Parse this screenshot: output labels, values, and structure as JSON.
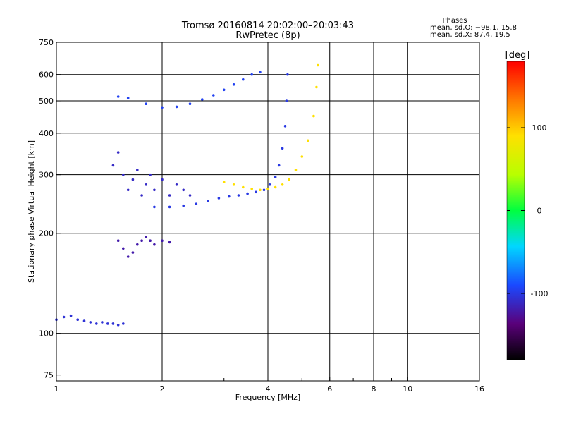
{
  "chart_data": {
    "type": "scatter",
    "title": "Tromsø 20160814 20:02:00–20:03:43",
    "subtitle": "RwPretec (8p)",
    "xlabel": "Frequency [MHz]",
    "ylabel": "Stationary phase Virtual Height [km]",
    "x_scale": "log",
    "y_scale": "log",
    "xlim": [
      1,
      16
    ],
    "ylim": [
      72,
      750
    ],
    "grid": true,
    "x_ticks": [
      1,
      2,
      4,
      6,
      8,
      10,
      16
    ],
    "x_minor_ticks": [
      3,
      5,
      7,
      9
    ],
    "x_gridlines": [
      2,
      4,
      6,
      8,
      10
    ],
    "y_ticks": [
      75,
      100,
      200,
      300,
      400,
      500,
      600,
      750
    ],
    "y_gridlines": [
      100,
      200,
      300,
      400,
      500,
      600
    ],
    "phase_stats": {
      "heading": "Phases",
      "o_line": "mean, sd,O: −98.1, 15.8",
      "x_line": "mean, sd,X:  87.4, 19.5"
    },
    "colorbar": {
      "label": "[deg]",
      "range": [
        -180,
        180
      ],
      "ticks": [
        100,
        0,
        -100
      ],
      "tick_labels": [
        "100",
        "0",
        "-100"
      ]
    },
    "colors": {
      "o_trace": "#1a49ff",
      "x_trace": "#e8e000"
    },
    "series": [
      {
        "trace": "O",
        "mode": "F2 main trace",
        "phase": -100,
        "points": [
          [
            1.9,
            240
          ],
          [
            2.1,
            240
          ],
          [
            2.3,
            242
          ],
          [
            2.5,
            245
          ],
          [
            2.7,
            250
          ],
          [
            2.9,
            255
          ],
          [
            3.1,
            258
          ],
          [
            3.3,
            260
          ],
          [
            3.5,
            263
          ],
          [
            3.7,
            266
          ],
          [
            3.9,
            270
          ],
          [
            4.05,
            280
          ],
          [
            4.2,
            295
          ],
          [
            4.3,
            320
          ],
          [
            4.4,
            360
          ],
          [
            4.48,
            420
          ],
          [
            4.52,
            500
          ],
          [
            4.55,
            600
          ]
        ]
      },
      {
        "trace": "O",
        "mode": "F2 spread cluster",
        "phase": -110,
        "points": [
          [
            1.45,
            320
          ],
          [
            1.5,
            350
          ],
          [
            1.55,
            300
          ],
          [
            1.6,
            270
          ],
          [
            1.65,
            290
          ],
          [
            1.7,
            310
          ],
          [
            1.75,
            260
          ],
          [
            1.8,
            280
          ],
          [
            1.85,
            300
          ],
          [
            1.9,
            270
          ],
          [
            2.0,
            290
          ],
          [
            2.1,
            260
          ],
          [
            2.2,
            280
          ],
          [
            2.3,
            270
          ],
          [
            2.4,
            260
          ]
        ]
      },
      {
        "trace": "O",
        "mode": "upper trace",
        "phase": -95,
        "points": [
          [
            1.5,
            515
          ],
          [
            1.6,
            510
          ],
          [
            1.8,
            490
          ],
          [
            2.0,
            478
          ],
          [
            2.2,
            480
          ],
          [
            2.4,
            490
          ],
          [
            2.6,
            505
          ],
          [
            2.8,
            520
          ],
          [
            3.0,
            540
          ],
          [
            3.2,
            560
          ],
          [
            3.4,
            580
          ],
          [
            3.6,
            600
          ],
          [
            3.8,
            610
          ]
        ]
      },
      {
        "trace": "O",
        "mode": "E/F1 low trace",
        "phase": -105,
        "points": [
          [
            1.0,
            110
          ],
          [
            1.05,
            112
          ],
          [
            1.1,
            113
          ],
          [
            1.15,
            110
          ],
          [
            1.2,
            109
          ],
          [
            1.25,
            108
          ],
          [
            1.3,
            107
          ],
          [
            1.35,
            108
          ],
          [
            1.4,
            107
          ],
          [
            1.45,
            107
          ],
          [
            1.5,
            106
          ],
          [
            1.55,
            107
          ]
        ]
      },
      {
        "trace": "O",
        "mode": "intermediate cluster",
        "phase": -120,
        "points": [
          [
            1.5,
            190
          ],
          [
            1.55,
            180
          ],
          [
            1.6,
            170
          ],
          [
            1.65,
            175
          ],
          [
            1.7,
            185
          ],
          [
            1.75,
            190
          ],
          [
            1.8,
            195
          ],
          [
            1.85,
            190
          ],
          [
            1.9,
            185
          ],
          [
            2.0,
            190
          ],
          [
            2.1,
            188
          ]
        ]
      },
      {
        "trace": "X",
        "mode": "F2 x-trace",
        "phase": 90,
        "points": [
          [
            3.0,
            285
          ],
          [
            3.2,
            280
          ],
          [
            3.4,
            275
          ],
          [
            3.6,
            272
          ],
          [
            3.8,
            270
          ],
          [
            4.0,
            272
          ],
          [
            4.2,
            275
          ],
          [
            4.4,
            280
          ],
          [
            4.6,
            290
          ],
          [
            4.8,
            310
          ],
          [
            5.0,
            340
          ],
          [
            5.2,
            380
          ],
          [
            5.4,
            450
          ],
          [
            5.5,
            550
          ],
          [
            5.55,
            640
          ]
        ]
      }
    ]
  }
}
